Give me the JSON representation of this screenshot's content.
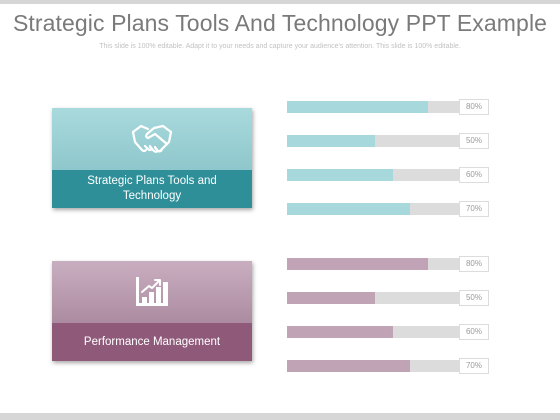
{
  "slide": {
    "title": "Strategic Plans Tools And Technology PPT Example",
    "subtitle": "This slide is 100% editable. Adapt it to your needs and capture your audience's attention. This slide is 100% editable."
  },
  "cards": [
    {
      "label": "Strategic Plans Tools and Technology",
      "icon": "handshake-icon",
      "color": "#2e8f99"
    },
    {
      "label": "Performance Management",
      "icon": "growth-chart-icon",
      "color": "#8f5a7a"
    }
  ],
  "bar_groups": [
    {
      "color": "#a6d8dc",
      "bars": [
        {
          "value": 80,
          "label": "80%"
        },
        {
          "value": 50,
          "label": "50%"
        },
        {
          "value": 60,
          "label": "60%"
        },
        {
          "value": 70,
          "label": "70%"
        }
      ]
    },
    {
      "color": "#c0a4b6",
      "bars": [
        {
          "value": 80,
          "label": "80%"
        },
        {
          "value": 50,
          "label": "50%"
        },
        {
          "value": 60,
          "label": "60%"
        },
        {
          "value": 70,
          "label": "70%"
        }
      ]
    }
  ]
}
